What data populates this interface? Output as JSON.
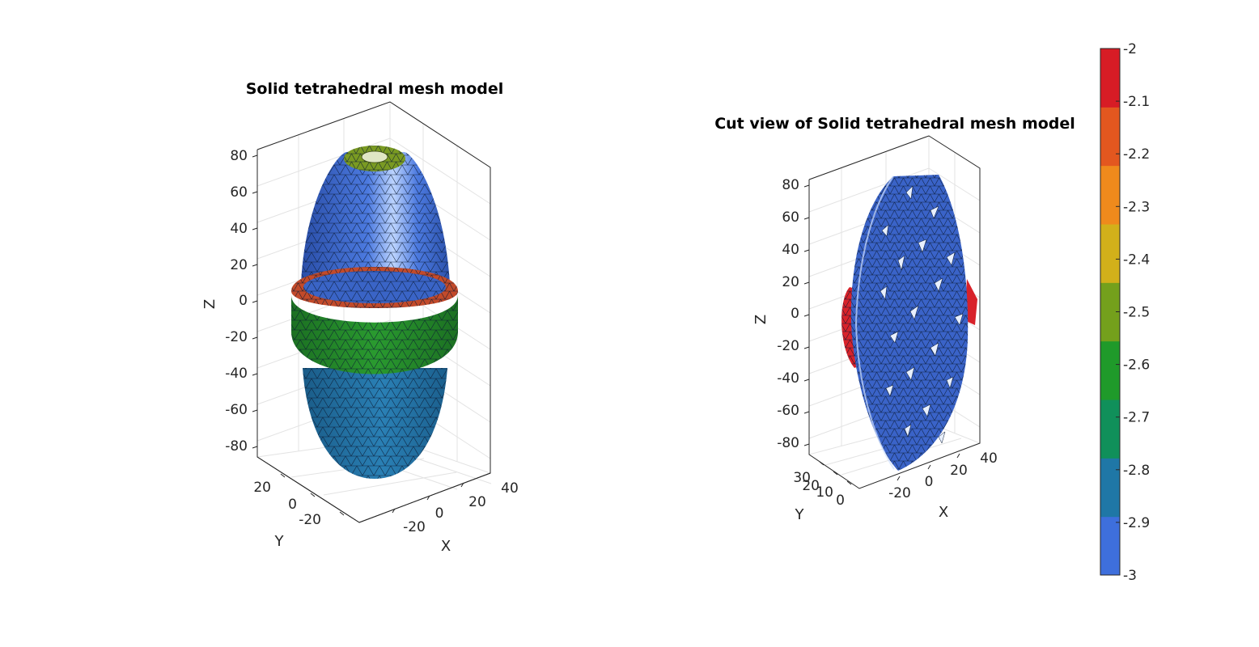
{
  "figure": {
    "left_axes": {
      "title": "Solid tetrahedral mesh model",
      "z_ticks": [
        "80",
        "60",
        "40",
        "20",
        "0",
        "-20",
        "-40",
        "-60",
        "-80"
      ],
      "y_ticks": [
        "20",
        "0",
        "-20"
      ],
      "x_ticks": [
        "-20",
        "0",
        "20",
        "40"
      ],
      "xlabel": "X",
      "ylabel": "Y",
      "zlabel": "Z"
    },
    "right_axes": {
      "title": "Cut view of Solid tetrahedral mesh model",
      "z_ticks": [
        "80",
        "60",
        "40",
        "20",
        "0",
        "-20",
        "-40",
        "-60",
        "-80"
      ],
      "y_ticks": [
        "30",
        "20",
        "10",
        "0"
      ],
      "x_ticks": [
        "-20",
        "0",
        "20",
        "40"
      ],
      "xlabel": "X",
      "ylabel": "Y",
      "zlabel": "Z"
    },
    "colorbar": {
      "ticks": [
        "-2",
        "-2.1",
        "-2.2",
        "-2.3",
        "-2.4",
        "-2.5",
        "-2.6",
        "-2.7",
        "-2.8",
        "-2.9",
        "-3"
      ],
      "colors": [
        "#3e6fdc",
        "#1f77a6",
        "#10905a",
        "#1f9a2a",
        "#74a01c",
        "#d2b01a",
        "#ef8a1c",
        "#e3571f",
        "#d71c25"
      ]
    },
    "colors": {
      "top_body": "#3a64c6",
      "bottom_body": "#1f6fa0",
      "band": "#23892a",
      "band_top": "#c24a2a",
      "cap": "#7a9a22",
      "cut_face": "#3a63c8",
      "cut_red": "#d8222a"
    }
  }
}
